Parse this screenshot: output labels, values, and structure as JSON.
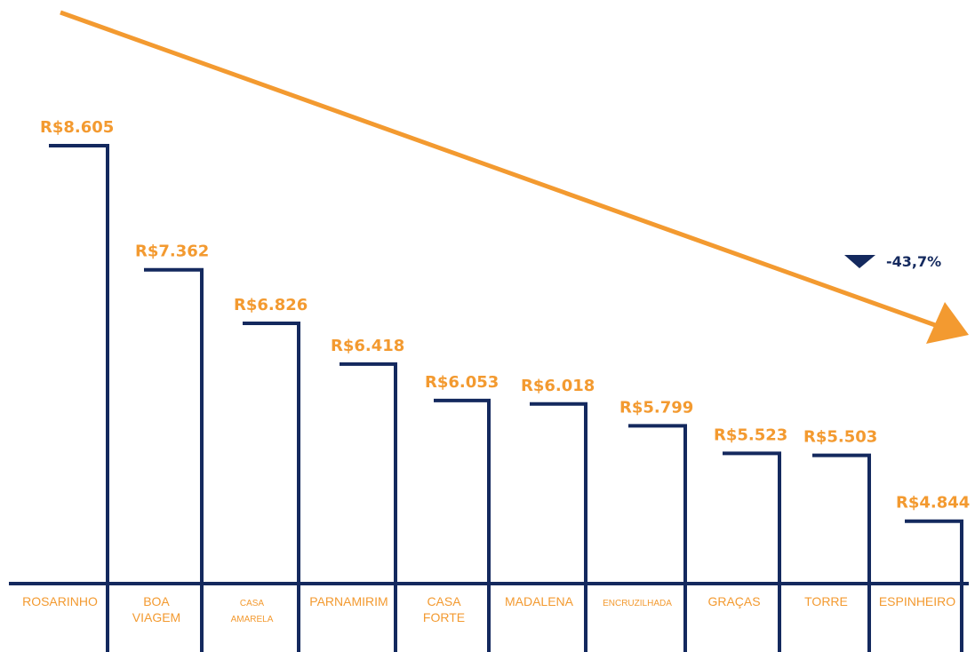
{
  "colors": {
    "bar": "#14295e",
    "label": "#f39a30",
    "arrow": "#f39a30",
    "delta": "#14295e"
  },
  "chart_data": {
    "type": "bar",
    "categories": [
      "ROSARINHO",
      "BOA VIAGEM",
      "CASA AMARELA",
      "PARNAMIRIM",
      "CASA FORTE",
      "MADALENA",
      "ENCRUZILHADA",
      "GRAÇAS",
      "TORRE",
      "ESPINHEIRO"
    ],
    "category_lines": [
      [
        "ROSARINHO"
      ],
      [
        "BOA",
        "VIAGEM"
      ],
      [
        "CASA",
        "AMARELA"
      ],
      [
        "PARNAMIRIM"
      ],
      [
        "CASA",
        "FORTE"
      ],
      [
        "MADALENA"
      ],
      [
        "ENCRUZILHADA"
      ],
      [
        "GRAÇAS"
      ],
      [
        "TORRE"
      ],
      [
        "ESPINHEIRO"
      ]
    ],
    "values": [
      8605,
      7362,
      6826,
      6418,
      6053,
      6018,
      5799,
      5523,
      5503,
      4844
    ],
    "value_labels": [
      "R$8.605",
      "R$7.362",
      "R$6.826",
      "R$6.418",
      "R$6.053",
      "R$6.018",
      "R$5.799",
      "R$5.523",
      "R$5.503",
      "R$4.844"
    ],
    "title": "",
    "xlabel": "",
    "ylabel": "",
    "grid": false,
    "trend": {
      "direction": "down",
      "label": "-43,7%"
    }
  }
}
